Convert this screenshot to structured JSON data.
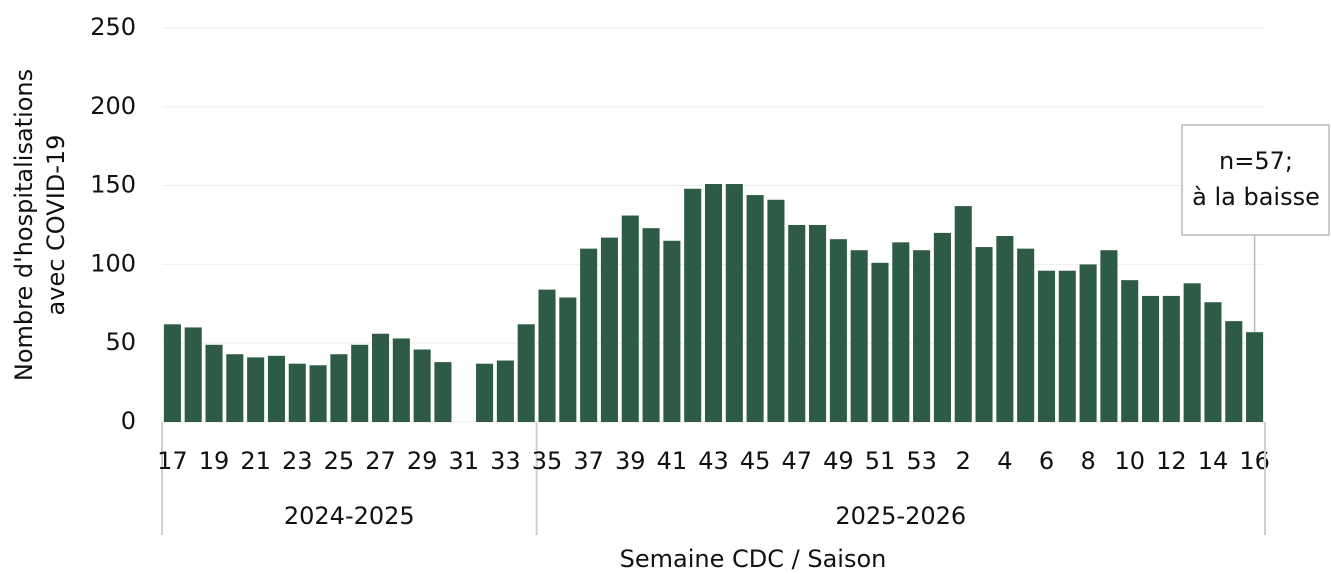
{
  "chart_data": {
    "type": "bar",
    "ylabel": [
      "Nombre d'hospitalisations",
      "avec COVID-19"
    ],
    "xlabel": "Semaine CDC / Saison",
    "groups": [
      {
        "name": "2024-2025",
        "categories": [
          "17",
          null,
          "19",
          null,
          "21",
          null,
          "23",
          null,
          "25",
          null,
          "27",
          null,
          "29",
          null,
          "31",
          null,
          "33",
          null
        ]
      },
      {
        "name": "2025-2026",
        "categories": [
          "35",
          null,
          "37",
          null,
          "39",
          null,
          "41",
          null,
          "43",
          null,
          "45",
          null,
          "47",
          null,
          "49",
          null,
          "51",
          null,
          "53",
          null,
          "2",
          null,
          "4",
          null,
          "6",
          null,
          "8",
          null,
          "10",
          null,
          "12",
          null,
          "14",
          null,
          "16"
        ]
      }
    ],
    "values": [
      62,
      60,
      49,
      43,
      41,
      42,
      37,
      36,
      43,
      49,
      56,
      53,
      46,
      38,
      null,
      37,
      39,
      62,
      84,
      79,
      110,
      117,
      131,
      123,
      115,
      148,
      151,
      151,
      144,
      141,
      125,
      125,
      116,
      109,
      101,
      114,
      109,
      120,
      137,
      111,
      118,
      110,
      96,
      96,
      100,
      109,
      90,
      80,
      80,
      88,
      76,
      64,
      57
    ],
    "color": "#2e5b45",
    "ylim": [
      0,
      250
    ],
    "yticks": [
      0,
      50,
      100,
      150,
      200,
      250
    ],
    "grid": true,
    "annotation": [
      "n=57;",
      "à la baisse"
    ]
  }
}
